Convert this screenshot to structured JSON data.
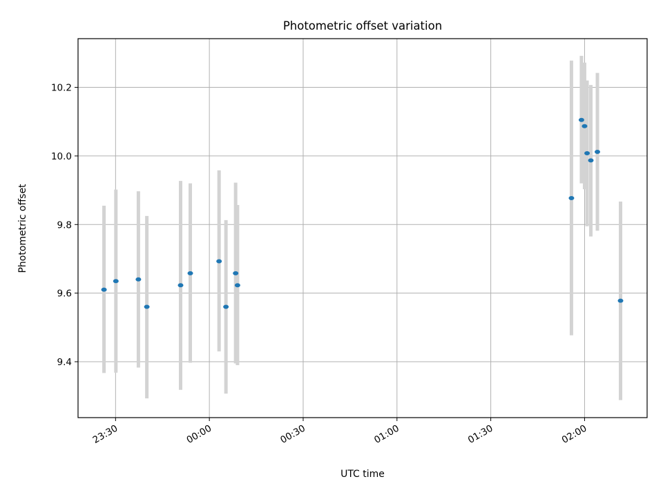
{
  "chart_data": {
    "type": "scatter",
    "title": "Photometric offset variation",
    "xlabel": "UTC time",
    "ylabel": "Photometric offset",
    "xlim": [
      "23:18",
      "02:20"
    ],
    "ylim": [
      9.237,
      10.342
    ],
    "x_ticks": [
      {
        "time": "23:30",
        "label": "23:30"
      },
      {
        "time": "00:00",
        "label": "00:00"
      },
      {
        "time": "00:30",
        "label": "00:30"
      },
      {
        "time": "01:00",
        "label": "01:00"
      },
      {
        "time": "01:30",
        "label": "01:30"
      },
      {
        "time": "02:00",
        "label": "02:00"
      }
    ],
    "y_ticks": [
      {
        "value": 9.4,
        "label": "9.4"
      },
      {
        "value": 9.6,
        "label": "9.6"
      },
      {
        "value": 9.8,
        "label": "9.8"
      },
      {
        "value": 10.0,
        "label": "10.0"
      },
      {
        "value": 10.2,
        "label": "10.2"
      }
    ],
    "grid": true,
    "legend": "none",
    "marker_color": "#1f77b4",
    "errorbar_color": "#d3d3d3",
    "points": [
      {
        "time": "23:26.3",
        "y": 9.61,
        "low": 9.367,
        "high": 9.855
      },
      {
        "time": "23:30.1",
        "y": 9.635,
        "low": 9.368,
        "high": 9.902
      },
      {
        "time": "23:37.3",
        "y": 9.64,
        "low": 9.383,
        "high": 9.897
      },
      {
        "time": "23:40.0",
        "y": 9.56,
        "low": 9.293,
        "high": 9.825
      },
      {
        "time": "23:50.8",
        "y": 9.623,
        "low": 9.318,
        "high": 9.927
      },
      {
        "time": "23:53.9",
        "y": 9.658,
        "low": 9.397,
        "high": 9.92
      },
      {
        "time": "00:03.1",
        "y": 9.693,
        "low": 9.43,
        "high": 9.958
      },
      {
        "time": "00:05.3",
        "y": 9.56,
        "low": 9.307,
        "high": 9.813
      },
      {
        "time": "00:08.4",
        "y": 9.658,
        "low": 9.395,
        "high": 9.922
      },
      {
        "time": "00:09.0",
        "y": 9.623,
        "low": 9.39,
        "high": 9.857
      },
      {
        "time": "01:55.8",
        "y": 9.877,
        "low": 9.477,
        "high": 10.278
      },
      {
        "time": "01:59.0",
        "y": 10.105,
        "low": 9.92,
        "high": 10.292
      },
      {
        "time": "02:00.0",
        "y": 10.087,
        "low": 9.903,
        "high": 10.272
      },
      {
        "time": "02:00.8",
        "y": 10.008,
        "low": 9.795,
        "high": 10.22
      },
      {
        "time": "02:02.0",
        "y": 9.987,
        "low": 9.765,
        "high": 10.207
      },
      {
        "time": "02:04.1",
        "y": 10.012,
        "low": 9.782,
        "high": 10.242
      },
      {
        "time": "02:11.5",
        "y": 9.578,
        "low": 9.288,
        "high": 9.867
      }
    ]
  }
}
